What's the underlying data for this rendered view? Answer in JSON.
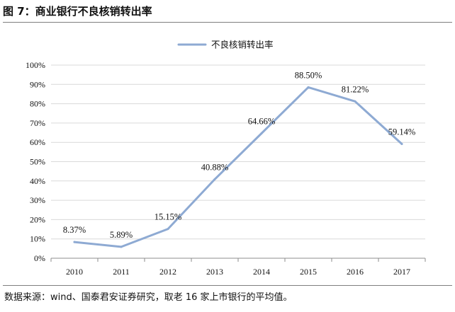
{
  "figure": {
    "title": "图 7：商业银行不良核销转出率",
    "source": "数据来源：wind、国泰君安证券研究，取老 16 家上市银行的平均值。"
  },
  "colors": {
    "line": "#8eaad3",
    "grid": "#d9d9d9",
    "axis": "#8c8c8c"
  },
  "chart_data": {
    "type": "line",
    "title": "",
    "xlabel": "",
    "ylabel": "",
    "categories": [
      "2010",
      "2011",
      "2012",
      "2013",
      "2014",
      "2015",
      "2016",
      "2017"
    ],
    "series": [
      {
        "name": "不良核销转出率",
        "values": [
          8.37,
          5.89,
          15.15,
          40.88,
          64.66,
          88.5,
          81.22,
          59.14
        ],
        "labels": [
          "8.37%",
          "5.89%",
          "15.15%",
          "40.88%",
          "64.66%",
          "88.50%",
          "81.22%",
          "59.14%"
        ]
      }
    ],
    "ylim": [
      0,
      100
    ],
    "yticks": [
      "0%",
      "10%",
      "20%",
      "30%",
      "40%",
      "50%",
      "60%",
      "70%",
      "80%",
      "90%",
      "100%"
    ],
    "grid": true,
    "legend": "top-center"
  }
}
